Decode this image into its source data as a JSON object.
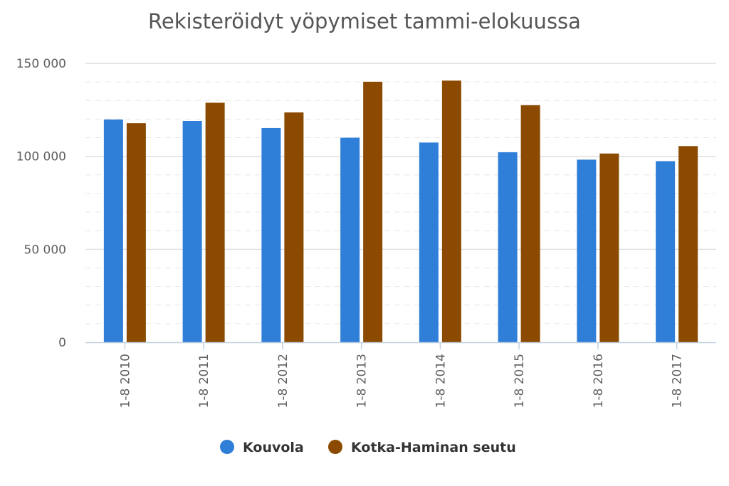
{
  "chart_data": {
    "type": "bar",
    "title": "Rekisteröidyt yöpymiset tammi-elokuussa",
    "xlabel": "",
    "ylabel": "",
    "ylim": [
      0,
      150000
    ],
    "yticks": [
      0,
      50000,
      100000,
      150000
    ],
    "ytick_labels": [
      "0",
      "50 000",
      "100 000",
      "150 000"
    ],
    "minor_step": 10000,
    "grid": true,
    "legend_position": "bottom-center",
    "categories": [
      "1-8 2010",
      "1-8 2011",
      "1-8 2012",
      "1-8 2013",
      "1-8 2014",
      "1-8 2015",
      "1-8 2016",
      "1-8 2017"
    ],
    "series": [
      {
        "name": "Kouvola",
        "color": "#2f7ed8",
        "values": [
          119800,
          119000,
          115200,
          110000,
          107400,
          102200,
          98200,
          97400
        ]
      },
      {
        "name": "Kotka-Haminan seutu",
        "color": "#8b4a00",
        "values": [
          117800,
          128800,
          123600,
          140100,
          140700,
          127500,
          101500,
          105500
        ]
      }
    ]
  }
}
